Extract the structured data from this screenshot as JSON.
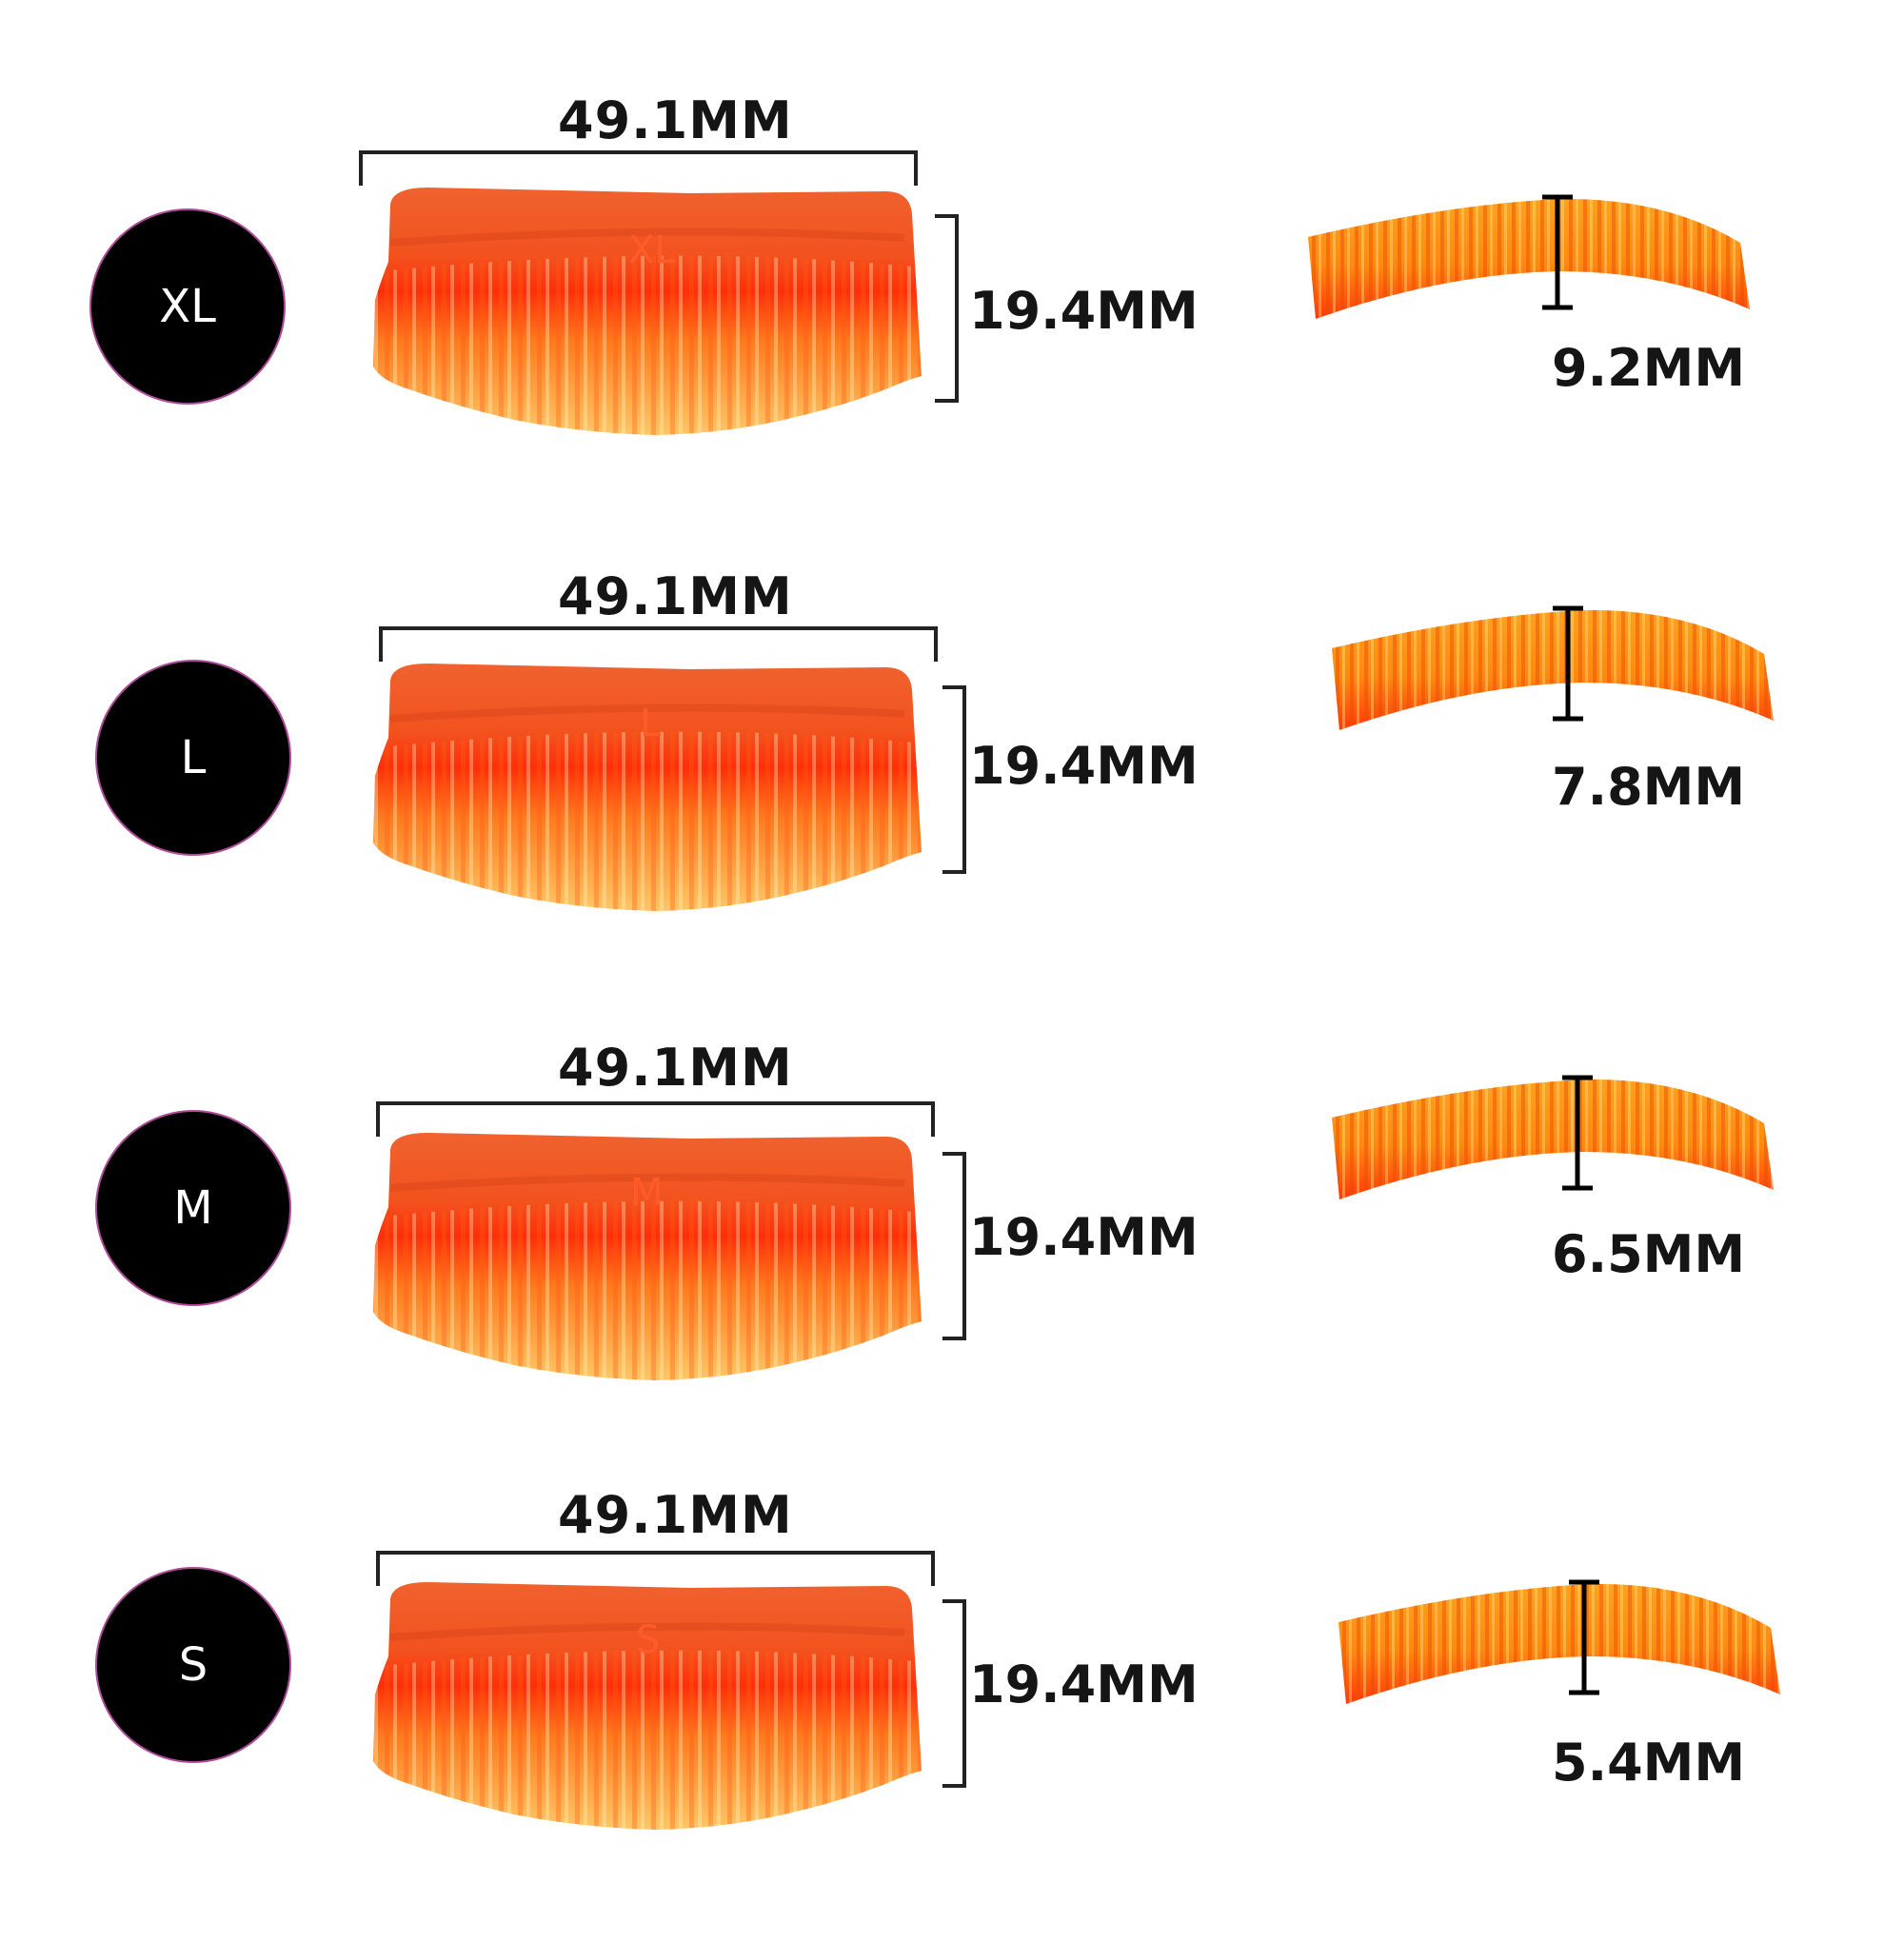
{
  "colors": {
    "pad_top": "#f2521e",
    "pad_mid": "#ff3a0c",
    "pad_bottom": "#ffb347",
    "badge": "#000000",
    "badge_text": "#ffffff",
    "dimension_text": "#151515"
  },
  "sizes": [
    {
      "label": "XL",
      "width": "49.1MM",
      "height": "19.4MM",
      "thickness": "9.2MM",
      "thickness_mm": 9.2
    },
    {
      "label": "L",
      "width": "49.1MM",
      "height": "19.4MM",
      "thickness": "7.8MM",
      "thickness_mm": 7.8
    },
    {
      "label": "M",
      "width": "49.1MM",
      "height": "19.4MM",
      "thickness": "6.5MM",
      "thickness_mm": 6.5
    },
    {
      "label": "S",
      "width": "49.1MM",
      "height": "19.4MM",
      "thickness": "5.4MM",
      "thickness_mm": 5.4
    }
  ]
}
